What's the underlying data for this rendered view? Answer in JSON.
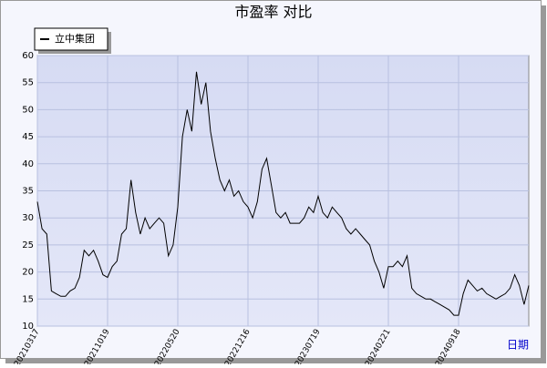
{
  "chart_data": {
    "type": "line",
    "title": "市盈率  对比",
    "x_label": "日期",
    "categories": [
      "20210317",
      null,
      null,
      null,
      null,
      null,
      null,
      null,
      null,
      null,
      null,
      null,
      null,
      null,
      null,
      "20211019",
      null,
      null,
      null,
      null,
      null,
      null,
      null,
      null,
      null,
      null,
      null,
      null,
      null,
      null,
      "20220520",
      null,
      null,
      null,
      null,
      null,
      null,
      null,
      null,
      null,
      null,
      null,
      null,
      null,
      null,
      "20221216",
      null,
      null,
      null,
      null,
      null,
      null,
      null,
      null,
      null,
      null,
      null,
      null,
      null,
      null,
      "20230719",
      null,
      null,
      null,
      null,
      null,
      null,
      null,
      null,
      null,
      null,
      null,
      null,
      null,
      null,
      "20240221",
      null,
      null,
      null,
      null,
      null,
      null,
      null,
      null,
      null,
      null,
      null,
      null,
      null,
      null,
      "20240918",
      null,
      null,
      null,
      null,
      null,
      null,
      null,
      null,
      null,
      null,
      null,
      null,
      null,
      null,
      null
    ],
    "series": [
      {
        "name": "立中集团",
        "color": "#000000",
        "values": [
          33,
          28,
          27,
          16.5,
          16,
          15.5,
          15.5,
          16.5,
          17,
          19,
          24,
          23,
          24,
          22,
          19.5,
          19,
          21,
          22,
          27,
          28,
          37,
          31,
          27,
          30,
          28,
          29,
          30,
          29,
          23,
          25,
          32,
          45,
          50,
          46,
          57,
          51,
          55,
          46,
          41,
          37,
          35,
          37,
          34,
          35,
          33,
          32,
          30,
          33,
          39,
          41,
          36,
          31,
          30,
          31,
          29,
          29,
          29,
          30,
          32,
          31,
          34,
          31,
          30,
          32,
          31,
          30,
          28,
          27,
          28,
          27,
          26,
          25,
          22,
          20,
          17,
          21,
          21,
          22,
          21,
          23,
          17,
          16,
          15.5,
          15,
          15,
          14.5,
          14,
          13.5,
          13,
          12,
          12,
          16,
          18.5,
          17.5,
          16.5,
          17,
          16,
          15.5,
          15,
          15.5,
          16,
          17,
          19.5,
          17.5,
          14,
          17.5
        ]
      }
    ],
    "ylim": [
      10,
      60
    ],
    "yticks": [
      10,
      15,
      20,
      25,
      30,
      35,
      40,
      45,
      50,
      55,
      60
    ],
    "grid": true,
    "legend": "top-left"
  }
}
